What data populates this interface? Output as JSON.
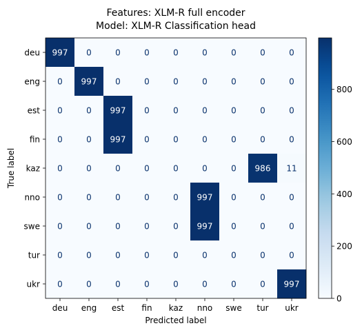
{
  "chart_data": {
    "type": "heatmap",
    "title_lines": [
      "Features: XLM-R full encoder",
      "Model: XLM-R Classification head"
    ],
    "xlabel": "Predicted label",
    "ylabel": "True label",
    "x_categories": [
      "deu",
      "eng",
      "est",
      "fin",
      "kaz",
      "nno",
      "swe",
      "tur",
      "ukr"
    ],
    "y_categories": [
      "deu",
      "eng",
      "est",
      "fin",
      "kaz",
      "nno",
      "swe",
      "tur",
      "ukr"
    ],
    "matrix": [
      [
        997,
        0,
        0,
        0,
        0,
        0,
        0,
        0,
        0
      ],
      [
        0,
        997,
        0,
        0,
        0,
        0,
        0,
        0,
        0
      ],
      [
        0,
        0,
        997,
        0,
        0,
        0,
        0,
        0,
        0
      ],
      [
        0,
        0,
        997,
        0,
        0,
        0,
        0,
        0,
        0
      ],
      [
        0,
        0,
        0,
        0,
        0,
        0,
        0,
        986,
        11
      ],
      [
        0,
        0,
        0,
        0,
        0,
        997,
        0,
        0,
        0
      ],
      [
        0,
        0,
        0,
        0,
        0,
        997,
        0,
        0,
        0
      ],
      [
        0,
        0,
        0,
        0,
        0,
        0,
        0,
        0,
        0
      ],
      [
        0,
        0,
        0,
        0,
        0,
        0,
        0,
        0,
        997
      ]
    ],
    "colormap": "Blues",
    "color_range": [
      0,
      997
    ],
    "colorbar_ticks": [
      0,
      200,
      400,
      600,
      800
    ],
    "grid": false
  }
}
